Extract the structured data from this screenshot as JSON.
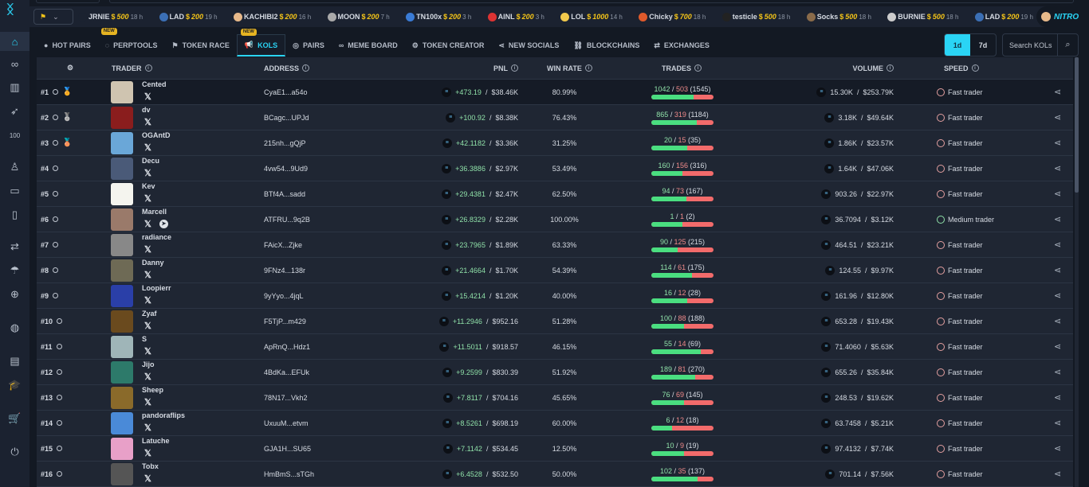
{
  "sidebar": {
    "items": [
      {
        "icon": "home-icon",
        "glyph": "⌂",
        "active": true
      },
      {
        "icon": "binoculars-icon",
        "glyph": "∞"
      },
      {
        "icon": "chart-icon",
        "glyph": "▥"
      },
      {
        "icon": "rocket-icon",
        "glyph": "➶"
      },
      {
        "icon": "hundred-icon",
        "glyph": "100"
      },
      {
        "icon": "user-icon",
        "glyph": "♙"
      },
      {
        "icon": "wallet-icon",
        "glyph": "▭"
      },
      {
        "icon": "file-check-icon",
        "glyph": "▯"
      },
      {
        "icon": "swap-icon",
        "glyph": "⇄"
      },
      {
        "icon": "parachute-icon",
        "glyph": "☂"
      },
      {
        "icon": "plus-circle-icon",
        "glyph": "⊕"
      },
      {
        "icon": "globe-icon",
        "glyph": "◍"
      },
      {
        "icon": "news-icon",
        "glyph": "▤"
      },
      {
        "icon": "graduation-cap-icon",
        "glyph": "🎓"
      },
      {
        "icon": "cart-icon",
        "glyph": "🛒"
      },
      {
        "icon": "power-icon",
        "glyph": "⏻"
      }
    ]
  },
  "ticker": {
    "items": [
      {
        "name": "JRNIE",
        "amount": "500",
        "time": "18 h",
        "color": "#1b2230"
      },
      {
        "name": "LAD",
        "amount": "200",
        "time": "19 h",
        "color": "#3b6fb5"
      },
      {
        "name": "KACHIBI2",
        "amount": "200",
        "time": "16 h",
        "color": "#e7b98a"
      },
      {
        "name": "MOON",
        "amount": "200",
        "time": "7 h",
        "color": "#a9a9a9"
      },
      {
        "name": "TN100x",
        "amount": "200",
        "time": "3 h",
        "color": "#3a7bd5"
      },
      {
        "name": "AINL",
        "amount": "200",
        "time": "3 h",
        "color": "#d33"
      },
      {
        "name": "LOL",
        "amount": "1000",
        "time": "14 h",
        "color": "#f2c94c"
      },
      {
        "name": "Chicky",
        "amount": "700",
        "time": "18 h",
        "color": "#e05a2b"
      },
      {
        "name": "testicle",
        "amount": "500",
        "time": "18 h",
        "color": "#222"
      },
      {
        "name": "Socks",
        "amount": "500",
        "time": "18 h",
        "color": "#8a6b4a"
      },
      {
        "name": "BURNIE",
        "amount": "500",
        "time": "18 h",
        "color": "#ccc"
      },
      {
        "name": "LAD",
        "amount": "200",
        "time": "19 h",
        "color": "#3b6fb5"
      }
    ],
    "nitro": "NITRO"
  },
  "nav": {
    "tabs": [
      {
        "label": "HOT PAIRS",
        "icon": "flame-icon",
        "glyph": "●"
      },
      {
        "label": "PERPTOOLS",
        "icon": "perp-icon",
        "glyph": "◌",
        "badge": "NEW"
      },
      {
        "label": "TOKEN RACE",
        "icon": "race-flag-icon",
        "glyph": "⚑"
      },
      {
        "label": "KOLS",
        "icon": "megaphone-icon",
        "glyph": "📢",
        "badge": "NEW",
        "active": true
      },
      {
        "label": "PAIRS",
        "icon": "pairs-icon",
        "glyph": "◎"
      },
      {
        "label": "MEME BOARD",
        "icon": "binoculars-icon",
        "glyph": "∞"
      },
      {
        "label": "TOKEN CREATOR",
        "icon": "token-icon",
        "glyph": "⚙"
      },
      {
        "label": "NEW SOCIALS",
        "icon": "share-icon",
        "glyph": "⋖"
      },
      {
        "label": "BLOCKCHAINS",
        "icon": "link-icon",
        "glyph": "⛓"
      },
      {
        "label": "EXCHANGES",
        "icon": "exchange-icon",
        "glyph": "⇄"
      }
    ],
    "periods": [
      "1d",
      "7d"
    ],
    "active_period": "1d",
    "search_placeholder": "Search KOLs"
  },
  "table": {
    "headers": {
      "trader": "TRADER",
      "address": "ADDRESS",
      "pnl": "PNL",
      "win_rate": "WIN RATE",
      "trades": "TRADES",
      "volume": "VOLUME",
      "speed": "SPEED"
    },
    "rows": [
      {
        "rank": "#1",
        "medal": "gold",
        "name": "Cented",
        "avatar": "#cfc4b0",
        "address": "CyaE1...a54o",
        "pnl": "+473.19",
        "pnl_usd": "$38.46K",
        "win_rate": "80.99%",
        "wins": 1042,
        "losses": 503,
        "total": 1545,
        "volume": "15.30K",
        "volume_usd": "$253.79K",
        "speed": "Fast trader"
      },
      {
        "rank": "#2",
        "medal": "silver",
        "name": "dv",
        "avatar": "#8a1d1d",
        "address": "BCagc...UPJd",
        "pnl": "+100.92",
        "pnl_usd": "$8.38K",
        "win_rate": "76.43%",
        "wins": 865,
        "losses": 319,
        "total": 1184,
        "volume": "3.18K",
        "volume_usd": "$49.64K",
        "speed": "Fast trader"
      },
      {
        "rank": "#3",
        "medal": "bronze",
        "name": "OGAntD",
        "avatar": "#6aa7d8",
        "address": "215nh...gQjP",
        "pnl": "+42.1182",
        "pnl_usd": "$3.36K",
        "win_rate": "31.25%",
        "wins": 20,
        "losses": 15,
        "total": 35,
        "volume": "1.86K",
        "volume_usd": "$23.57K",
        "speed": "Fast trader"
      },
      {
        "rank": "#4",
        "name": "Decu",
        "avatar": "#4a5a78",
        "address": "4vw54...9Ud9",
        "pnl": "+36.3886",
        "pnl_usd": "$2.97K",
        "win_rate": "53.49%",
        "wins": 160,
        "losses": 156,
        "total": 316,
        "volume": "1.64K",
        "volume_usd": "$47.06K",
        "speed": "Fast trader"
      },
      {
        "rank": "#5",
        "name": "Kev",
        "avatar": "#f4f4ee",
        "address": "BTf4A...sadd",
        "pnl": "+29.4381",
        "pnl_usd": "$2.47K",
        "win_rate": "62.50%",
        "wins": 94,
        "losses": 73,
        "total": 167,
        "volume": "903.26",
        "volume_usd": "$22.97K",
        "speed": "Fast trader"
      },
      {
        "rank": "#6",
        "name": "Marcell",
        "avatar": "#9a7a6a",
        "telegram": true,
        "address": "ATFRU...9q2B",
        "pnl": "+26.8329",
        "pnl_usd": "$2.28K",
        "win_rate": "100.00%",
        "wins": 1,
        "losses": 1,
        "total": 2,
        "volume": "36.7094",
        "volume_usd": "$3.12K",
        "speed": "Medium trader",
        "speed_level": "medium"
      },
      {
        "rank": "#7",
        "name": "radiance",
        "avatar": "#888",
        "address": "FAicX...Zjke",
        "pnl": "+23.7965",
        "pnl_usd": "$1.89K",
        "win_rate": "63.33%",
        "wins": 90,
        "losses": 125,
        "total": 215,
        "volume": "464.51",
        "volume_usd": "$23.21K",
        "speed": "Fast trader"
      },
      {
        "rank": "#8",
        "name": "Danny",
        "avatar": "#6e6a55",
        "address": "9FNz4...138r",
        "pnl": "+21.4664",
        "pnl_usd": "$1.70K",
        "win_rate": "54.39%",
        "wins": 114,
        "losses": 61,
        "total": 175,
        "volume": "124.55",
        "volume_usd": "$9.97K",
        "speed": "Fast trader"
      },
      {
        "rank": "#9",
        "name": "Loopierr",
        "avatar": "#2a3fa8",
        "address": "9yYyo...4jqL",
        "pnl": "+15.4214",
        "pnl_usd": "$1.20K",
        "win_rate": "40.00%",
        "wins": 16,
        "losses": 12,
        "total": 28,
        "volume": "161.96",
        "volume_usd": "$12.80K",
        "speed": "Fast trader"
      },
      {
        "rank": "#10",
        "name": "Zyaf",
        "avatar": "#6a4a1e",
        "address": "F5TjP...m429",
        "pnl": "+11.2946",
        "pnl_usd": "$952.16",
        "win_rate": "51.28%",
        "wins": 100,
        "losses": 88,
        "total": 188,
        "volume": "653.28",
        "volume_usd": "$19.43K",
        "speed": "Fast trader"
      },
      {
        "rank": "#11",
        "name": "S",
        "avatar": "#9fb5b8",
        "address": "ApRnQ...Hdz1",
        "pnl": "+11.5011",
        "pnl_usd": "$918.57",
        "win_rate": "46.15%",
        "wins": 55,
        "losses": 14,
        "total": 69,
        "volume": "71.4060",
        "volume_usd": "$5.63K",
        "speed": "Fast trader"
      },
      {
        "rank": "#12",
        "name": "Jijo",
        "avatar": "#2d7a6a",
        "address": "4BdKa...EFUk",
        "pnl": "+9.2599",
        "pnl_usd": "$830.39",
        "win_rate": "51.92%",
        "wins": 189,
        "losses": 81,
        "total": 270,
        "volume": "655.26",
        "volume_usd": "$35.84K",
        "speed": "Fast trader"
      },
      {
        "rank": "#13",
        "name": "Sheep",
        "avatar": "#8a6a2a",
        "address": "78N17...Vkh2",
        "pnl": "+7.8117",
        "pnl_usd": "$704.16",
        "win_rate": "45.65%",
        "wins": 76,
        "losses": 69,
        "total": 145,
        "volume": "248.53",
        "volume_usd": "$19.62K",
        "speed": "Fast trader"
      },
      {
        "rank": "#14",
        "name": "pandoraflips",
        "avatar": "#4a8ad8",
        "address": "UxuuM...etvm",
        "pnl": "+8.5261",
        "pnl_usd": "$698.19",
        "win_rate": "60.00%",
        "wins": 6,
        "losses": 12,
        "total": 18,
        "volume": "63.7458",
        "volume_usd": "$5.21K",
        "speed": "Fast trader"
      },
      {
        "rank": "#15",
        "name": "Latuche",
        "avatar": "#e8a0c8",
        "address": "GJA1H...SU65",
        "pnl": "+7.1142",
        "pnl_usd": "$534.45",
        "win_rate": "12.50%",
        "wins": 10,
        "losses": 9,
        "total": 19,
        "volume": "97.4132",
        "volume_usd": "$7.74K",
        "speed": "Fast trader"
      },
      {
        "rank": "#16",
        "name": "Tobx",
        "avatar": "#555",
        "address": "HmBmS...sTGh",
        "pnl": "+6.4528",
        "pnl_usd": "$532.50",
        "win_rate": "50.00%",
        "wins": 102,
        "losses": 35,
        "total": 137,
        "volume": "701.14",
        "volume_usd": "$7.56K",
        "speed": "Fast trader"
      }
    ]
  },
  "colors": {
    "accent": "#2ad4f5",
    "win": "#4ade80",
    "loss": "#f26b6b",
    "gold": "#e6b422",
    "silver": "#b0b6c0",
    "bronze": "#d04a3a"
  }
}
